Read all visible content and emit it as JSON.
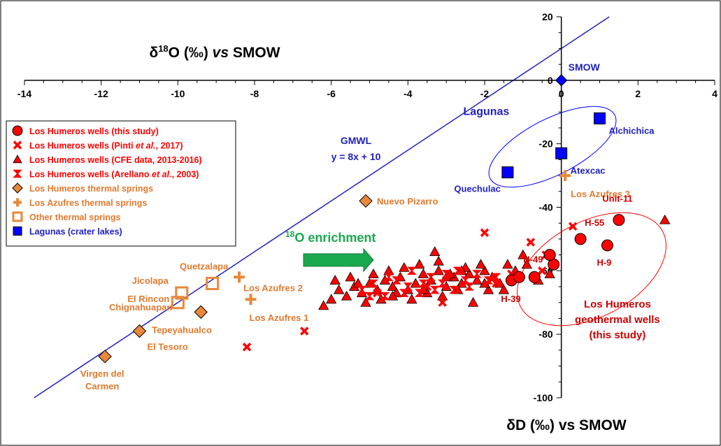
{
  "chart_data": {
    "type": "scatter",
    "title_x_axis": {
      "prefix": "δ",
      "sup": "18",
      "main": "O (‰) ",
      "italic": "vs",
      "suffix": " SMOW"
    },
    "title_y_axis": "δD (‰) vs SMOW",
    "x_ticks": [
      "-14",
      "-12",
      "-10",
      "-8",
      "-6",
      "-4",
      "-2",
      "0",
      "2",
      "4"
    ],
    "y_ticks": [
      "20",
      "0",
      "-20",
      "-40",
      "-60",
      "-80",
      "-100"
    ],
    "xlim": [
      -14,
      4
    ],
    "ylim": [
      -100,
      20
    ],
    "gmwl": {
      "label": "GMWL",
      "equation": "y = 8x + 10",
      "slope": 8,
      "intercept": 10,
      "color": "#2020c0"
    },
    "enrichment": {
      "sup": "18",
      "text": "O enrichment",
      "color": "#1aa84f"
    },
    "colors": {
      "red": "#ff0000",
      "orange": "#e8883a",
      "orange_text": "#e07a2e",
      "blue": "#0000ff",
      "blue_text": "#2020c0",
      "dark_red": "#cc0000"
    },
    "legend": [
      {
        "marker": "circle",
        "color": "#ff0000",
        "text": "Los Humeros wells (this study)"
      },
      {
        "marker": "x",
        "color": "#ff0000",
        "text": "Los Humeros wells (Pinti ",
        "italic": "et al.",
        "tail": ", 2017)"
      },
      {
        "marker": "triangle",
        "color": "#ff0000",
        "text": "Los Humeros wells (CFE data, 2013-2016)"
      },
      {
        "marker": "bowtie",
        "color": "#ff0000",
        "text": "Los Humeros wells (Arellano ",
        "italic": "et al.",
        "tail": ", 2003)"
      },
      {
        "marker": "diamond",
        "color": "#e8883a",
        "text": "Los Humeros thermal springs"
      },
      {
        "marker": "plus",
        "color": "#e8883a",
        "text": "Los Azufres thermal springs"
      },
      {
        "marker": "square-open",
        "color": "#e8883a",
        "text": "Other thermal springs"
      },
      {
        "marker": "square",
        "color": "#0000ff",
        "text": "Lagunas (crater lakes)"
      }
    ],
    "series": [
      {
        "name": "Los Humeros wells (this study)",
        "marker": "circle",
        "points": [
          [
            -1.3,
            -63
          ],
          [
            -0.7,
            -62
          ],
          [
            -0.2,
            -58
          ],
          [
            0.5,
            -50
          ],
          [
            1.2,
            -52
          ],
          [
            1.5,
            -44
          ],
          [
            -0.3,
            -55
          ],
          [
            -1.1,
            -62
          ]
        ]
      },
      {
        "name": "Los Humeros wells (Pinti et al., 2017)",
        "marker": "x",
        "points": [
          [
            -8.2,
            -84
          ],
          [
            -6.7,
            -79
          ],
          [
            -3.1,
            -70
          ],
          [
            -2.0,
            -48
          ],
          [
            -0.8,
            -51
          ],
          [
            -0.4,
            -55
          ],
          [
            0.3,
            -46
          ],
          [
            -1.3,
            -61
          ],
          [
            -0.5,
            -60
          ],
          [
            -4.8,
            -67
          ],
          [
            -3.5,
            -65
          ],
          [
            -1.7,
            -64
          ]
        ]
      },
      {
        "name": "Los Humeros wells (CFE data, 2013-2016)",
        "marker": "triangle",
        "points": [
          [
            -6.2,
            -71
          ],
          [
            -6.0,
            -69
          ],
          [
            -5.8,
            -66
          ],
          [
            -5.6,
            -68
          ],
          [
            -5.4,
            -65
          ],
          [
            -5.2,
            -67
          ],
          [
            -5.0,
            -64
          ],
          [
            -4.8,
            -66
          ],
          [
            -4.6,
            -63
          ],
          [
            -4.4,
            -65
          ],
          [
            -4.2,
            -62
          ],
          [
            -4.0,
            -66
          ],
          [
            -3.8,
            -64
          ],
          [
            -3.6,
            -61
          ],
          [
            -3.4,
            -63
          ],
          [
            -3.2,
            -60
          ],
          [
            -3.0,
            -65
          ],
          [
            -2.8,
            -62
          ],
          [
            -2.6,
            -64
          ],
          [
            -2.4,
            -61
          ],
          [
            -2.2,
            -63
          ],
          [
            -2.0,
            -60
          ],
          [
            -1.8,
            -62
          ],
          [
            -1.6,
            -64
          ],
          [
            -5.5,
            -62
          ],
          [
            -5.1,
            -70
          ],
          [
            -4.7,
            -69
          ],
          [
            -4.3,
            -67
          ],
          [
            -3.9,
            -69
          ],
          [
            -3.5,
            -67
          ],
          [
            -3.1,
            -68
          ],
          [
            -2.7,
            -66
          ],
          [
            -2.3,
            -70
          ],
          [
            -1.9,
            -66
          ],
          [
            -4.1,
            -59
          ],
          [
            -3.7,
            -58
          ],
          [
            -3.3,
            -54
          ],
          [
            -2.9,
            -61
          ],
          [
            -2.5,
            -59
          ],
          [
            -2.1,
            -58
          ],
          [
            -1.5,
            -66
          ],
          [
            -1.2,
            -60
          ],
          [
            -0.9,
            -58
          ],
          [
            -0.6,
            -63
          ],
          [
            -0.3,
            -61
          ],
          [
            -1.0,
            -55
          ],
          [
            2.7,
            -44
          ],
          [
            -4.5,
            -60
          ],
          [
            -5.9,
            -63
          ],
          [
            -3.0,
            -62
          ],
          [
            -2.6,
            -60
          ],
          [
            -4.9,
            -61
          ],
          [
            -3.6,
            -66
          ],
          [
            -4.4,
            -68
          ],
          [
            -2.0,
            -64
          ],
          [
            -1.4,
            -58
          ],
          [
            -5.3,
            -64
          ],
          [
            -3.2,
            -57
          ]
        ]
      },
      {
        "name": "Los Humeros wells (Arellano et al., 2003)",
        "marker": "bowtie",
        "points": [
          [
            -5.2,
            -66
          ],
          [
            -4.9,
            -64
          ],
          [
            -4.6,
            -68
          ],
          [
            -4.3,
            -63
          ],
          [
            -4.0,
            -65
          ],
          [
            -3.7,
            -67
          ],
          [
            -3.4,
            -62
          ],
          [
            -3.1,
            -64
          ],
          [
            -2.8,
            -66
          ],
          [
            -2.5,
            -63
          ],
          [
            -2.2,
            -61
          ],
          [
            -1.9,
            -63
          ],
          [
            -4.5,
            -62
          ],
          [
            -3.9,
            -60
          ],
          [
            -3.3,
            -66
          ],
          [
            -2.7,
            -60
          ],
          [
            -5.0,
            -68
          ],
          [
            -4.1,
            -67
          ],
          [
            -3.6,
            -64
          ],
          [
            -3.0,
            -61
          ],
          [
            -2.4,
            -65
          ],
          [
            -1.7,
            -62
          ]
        ]
      },
      {
        "name": "Los Humeros thermal springs",
        "marker": "diamond",
        "points": [
          [
            -11.9,
            -87
          ],
          [
            -11.0,
            -79
          ],
          [
            -9.4,
            -73
          ],
          [
            -5.1,
            -38
          ]
        ]
      },
      {
        "name": "Los Azufres thermal springs",
        "marker": "plus",
        "points": [
          [
            -8.4,
            -62
          ],
          [
            -8.1,
            -69
          ],
          [
            0.1,
            -30
          ]
        ]
      },
      {
        "name": "Other thermal springs",
        "marker": "square-open",
        "points": [
          [
            -9.1,
            -64
          ],
          [
            -9.9,
            -67
          ],
          [
            -10.0,
            -70
          ]
        ]
      },
      {
        "name": "Lagunas (crater lakes)",
        "marker": "square",
        "points": [
          [
            -1.4,
            -29
          ],
          [
            0.0,
            -23
          ],
          [
            1.0,
            -12
          ]
        ]
      },
      {
        "name": "SMOW",
        "marker": "diamond-blue",
        "points": [
          [
            0,
            0
          ]
        ]
      }
    ],
    "labels": [
      {
        "text": "SMOW",
        "x": 0,
        "y": 0,
        "group": "blue"
      },
      {
        "text": "Lagunas",
        "x": -1.5,
        "y": -12,
        "group": "blue-big"
      },
      {
        "text": "Alchichica",
        "x": 1.0,
        "y": -12,
        "group": "blue"
      },
      {
        "text": "Atexcac",
        "x": 0.0,
        "y": -23,
        "group": "blue"
      },
      {
        "text": "Quechulac",
        "x": -1.4,
        "y": -29,
        "group": "blue"
      },
      {
        "text": "Los Azufres 3",
        "x": 0.1,
        "y": -30,
        "group": "orange"
      },
      {
        "text": "Nuevo Pizarro",
        "x": -5.1,
        "y": -38,
        "group": "orange"
      },
      {
        "text": "Quetzalapa",
        "x": -9.1,
        "y": -64,
        "group": "orange"
      },
      {
        "text": "Los Azufres 2",
        "x": -8.4,
        "y": -62,
        "group": "orange"
      },
      {
        "text": "Jicolapa",
        "x": -9.9,
        "y": -67,
        "group": "orange"
      },
      {
        "text": "El Rincon",
        "x": -10.0,
        "y": -70,
        "group": "orange"
      },
      {
        "text": "Chignahuapan",
        "x": -10.0,
        "y": -70,
        "group": "orange"
      },
      {
        "text": "Los Azufres 1",
        "x": -8.1,
        "y": -69,
        "group": "orange"
      },
      {
        "text": "Tepeyahualco",
        "x": -9.4,
        "y": -73,
        "group": "orange"
      },
      {
        "text": "El Tesoro",
        "x": -11.0,
        "y": -79,
        "group": "orange"
      },
      {
        "text": "Virgen del",
        "x": -11.9,
        "y": -87,
        "group": "orange"
      },
      {
        "text": "Carmen",
        "x": -11.9,
        "y": -87,
        "group": "orange"
      },
      {
        "text": "Unit-11",
        "x": 1.5,
        "y": -44,
        "group": "red"
      },
      {
        "text": "H-55",
        "x": 0.5,
        "y": -50,
        "group": "red"
      },
      {
        "text": "H-49",
        "x": -0.7,
        "y": -62,
        "group": "red"
      },
      {
        "text": "H-9",
        "x": 1.2,
        "y": -52,
        "group": "red"
      },
      {
        "text": "H-39",
        "x": -1.3,
        "y": -63,
        "group": "red"
      },
      {
        "text": "Los Humeros",
        "x": 1.5,
        "y": -70,
        "group": "red-big"
      },
      {
        "text": "geothermal wells",
        "x": 1.5,
        "y": -70,
        "group": "red-big"
      },
      {
        "text": "(this study)",
        "x": 1.5,
        "y": -70,
        "group": "red-big"
      }
    ]
  }
}
